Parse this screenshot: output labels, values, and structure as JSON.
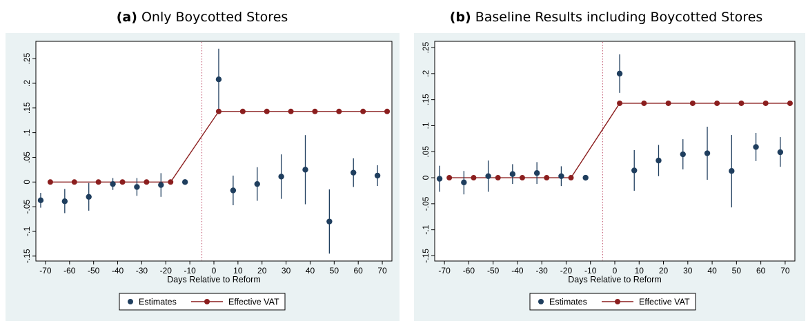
{
  "chart_data": [
    {
      "type": "scatter",
      "panel_label": "(a)",
      "title": "Only Boycotted Stores",
      "xlabel": "Days Relative to Reform",
      "ylabel": "",
      "xlim": [
        -74,
        74
      ],
      "ylim": [
        -0.16,
        0.285
      ],
      "xticks": [
        -70,
        -60,
        -50,
        -40,
        -30,
        -20,
        -10,
        0,
        10,
        20,
        30,
        40,
        50,
        60,
        70
      ],
      "yticks": [
        -0.15,
        -0.1,
        -0.05,
        0,
        0.05,
        0.1,
        0.15,
        0.2,
        0.25
      ],
      "yticklabels": [
        "-.15",
        "-.1",
        "-.05",
        "0",
        ".05",
        ".1",
        ".15",
        ".2",
        ".25"
      ],
      "reference_line_x": -5,
      "legend": {
        "placement": "bottom-center",
        "entries": [
          "Estimates",
          "Effective VAT"
        ]
      },
      "colors": {
        "estimates": "#1f3e5e",
        "vat": "#8b1e1e",
        "refline": "#c0506a",
        "background": "#eaf2f3"
      },
      "series": [
        {
          "name": "Estimates",
          "x": [
            -72,
            -62,
            -52,
            -42,
            -32,
            -22,
            -12,
            2,
            8,
            18,
            28,
            38,
            48,
            58,
            68
          ],
          "y": [
            -0.037,
            -0.039,
            -0.03,
            -0.004,
            -0.01,
            -0.006,
            0.0,
            0.208,
            -0.017,
            -0.004,
            0.011,
            0.025,
            -0.08,
            0.019,
            0.013
          ],
          "ci_low": [
            -0.052,
            -0.063,
            -0.058,
            -0.016,
            -0.028,
            -0.03,
            null,
            0.145,
            -0.047,
            -0.038,
            -0.034,
            -0.045,
            -0.145,
            -0.01,
            -0.008
          ],
          "ci_high": [
            -0.022,
            -0.014,
            -0.002,
            0.008,
            0.008,
            0.018,
            null,
            0.27,
            0.013,
            0.03,
            0.056,
            0.095,
            -0.015,
            0.048,
            0.034
          ]
        },
        {
          "name": "Effective VAT",
          "x": [
            -68,
            -58,
            -48,
            -38,
            -28,
            -18,
            2,
            12,
            22,
            32,
            42,
            52,
            62,
            72
          ],
          "y": [
            0,
            0,
            0,
            0,
            0,
            0,
            0.143,
            0.143,
            0.143,
            0.143,
            0.143,
            0.143,
            0.143,
            0.143
          ]
        }
      ]
    },
    {
      "type": "scatter",
      "panel_label": "(b)",
      "title": "Baseline Results including Boycotted Stores",
      "xlabel": "Days Relative to Reform",
      "ylabel": "",
      "xlim": [
        -74,
        74
      ],
      "ylim": [
        -0.16,
        0.262
      ],
      "xticks": [
        -70,
        -60,
        -50,
        -40,
        -30,
        -20,
        -10,
        0,
        10,
        20,
        30,
        40,
        50,
        60,
        70
      ],
      "yticks": [
        -0.15,
        -0.1,
        -0.05,
        0,
        0.05,
        0.1,
        0.15,
        0.2,
        0.25
      ],
      "yticklabels": [
        "-.15",
        "-.1",
        "-.05",
        "0",
        ".05",
        ".1",
        ".15",
        ".2",
        ".25"
      ],
      "reference_line_x": -5,
      "legend": {
        "placement": "bottom-center",
        "entries": [
          "Estimates",
          "Effective VAT"
        ]
      },
      "colors": {
        "estimates": "#1f3e5e",
        "vat": "#8b1e1e",
        "refline": "#c0506a",
        "background": "#eaf2f3"
      },
      "series": [
        {
          "name": "Estimates",
          "x": [
            -72,
            -62,
            -52,
            -42,
            -32,
            -22,
            -12,
            2,
            8,
            18,
            28,
            38,
            48,
            58,
            68
          ],
          "y": [
            -0.002,
            -0.009,
            0.003,
            0.007,
            0.009,
            0.003,
            0.0,
            0.2,
            0.014,
            0.033,
            0.045,
            0.047,
            0.013,
            0.059,
            0.049
          ],
          "ci_low": [
            -0.027,
            -0.032,
            -0.027,
            -0.012,
            -0.012,
            -0.016,
            null,
            0.163,
            -0.025,
            0.003,
            0.016,
            -0.004,
            -0.057,
            0.032,
            0.021
          ],
          "ci_high": [
            0.023,
            0.013,
            0.033,
            0.026,
            0.03,
            0.022,
            null,
            0.237,
            0.053,
            0.063,
            0.074,
            0.098,
            0.082,
            0.086,
            0.078
          ]
        },
        {
          "name": "Effective VAT",
          "x": [
            -68,
            -58,
            -48,
            -38,
            -28,
            -18,
            2,
            12,
            22,
            32,
            42,
            52,
            62,
            72
          ],
          "y": [
            0,
            0,
            0,
            0,
            0,
            0,
            0.143,
            0.143,
            0.143,
            0.143,
            0.143,
            0.143,
            0.143,
            0.143
          ]
        }
      ]
    }
  ]
}
